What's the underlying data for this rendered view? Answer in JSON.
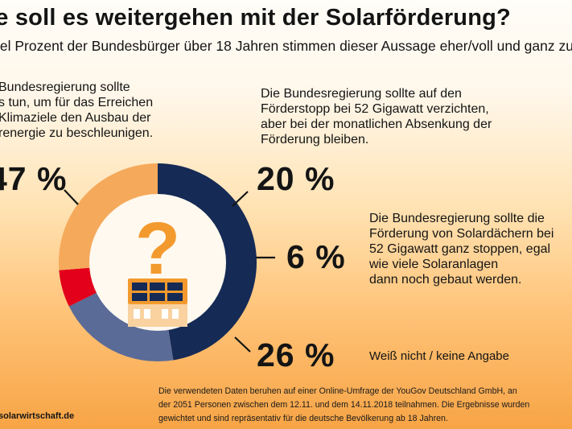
{
  "title": "ie soll es weitergehen mit der Solarförderung?",
  "subtitle": "iel Prozent der Bundesbürger über 18 Jahren stimmen dieser Aussage eher/voll und ganz zu",
  "statements": [
    "Bundesregierung sollte\ns tun, um für das Erreichen\nKlimaziele den Ausbau der\nrenergie zu beschleunigen.",
    "Die Bundesregierung sollte auf den\nFörderstopp bei 52 Gigawatt verzichten,\naber bei der monatlichen Absenkung der\nFörderung bleiben.",
    "Die Bundesregierung sollte die\nFörderung von Solardächern bei\n52 Gigawatt ganz stoppen, egal\nwie viele Solaranlagen\ndann noch gebaut werden.",
    "Weiß nicht / keine Angabe"
  ],
  "percent_labels": [
    "47 %",
    "20 %",
    "6 %",
    "26 %"
  ],
  "footnote": "Die verwendeten Daten beruhen auf einer Online-Umfrage der YouGov Deutschland GmbH, an\nder 2051 Personen zwischen dem 12.11. und dem 14.11.2018 teilnahmen. Die Ergebnisse wurden\ngewichtet und sind repräsentativ für die deutsche Bevölkerung ab 18 Jahren.",
  "source": "solarwirtschaft.de",
  "icon": "question-mark-house-solar-icon",
  "colors": {
    "navy": "#152a55",
    "slate": "#5b6b98",
    "red": "#e2001a",
    "lightorange": "#f5a95b",
    "orange": "#f39a2e",
    "cream": "#fff9ef"
  },
  "chart_data": {
    "type": "pie",
    "variant": "donut",
    "categories": [
      "Bundesregierung sollte s tun, um für das Erreichen Klimaziele den Ausbau der renergie zu beschleunigen.",
      "Die Bundesregierung sollte auf den Förderstopp bei 52 Gigawatt verzichten, aber bei der monatlichen Absenkung der Förderung bleiben.",
      "Die Bundesregierung sollte die Förderung von Solardächern bei 52 Gigawatt ganz stoppen, egal wie viele Solaranlagen dann noch gebaut werden.",
      "Weiß nicht / keine Angabe"
    ],
    "values": [
      47,
      20,
      6,
      26
    ],
    "unit": "%",
    "colors": [
      "#152a55",
      "#5b6b98",
      "#e2001a",
      "#f5a95b"
    ]
  }
}
